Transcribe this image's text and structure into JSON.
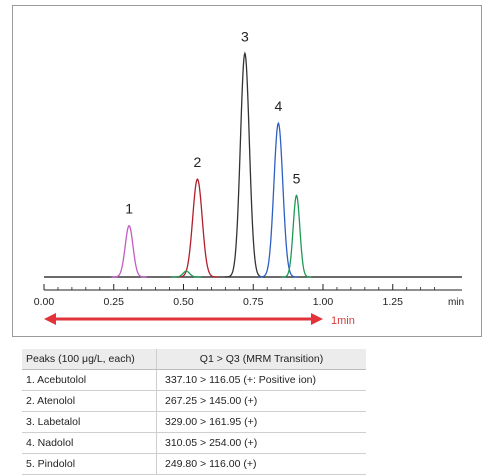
{
  "chart_data": {
    "type": "line",
    "xlabel": "",
    "ylabel": "",
    "x_unit": "min",
    "xlim": [
      0.0,
      1.25
    ],
    "x_ticks": [
      "0.00",
      "0.25",
      "0.50",
      "0.75",
      "1.00",
      "1.25"
    ],
    "grid": false,
    "scale_bar": {
      "from": 0.0,
      "to": 1.0,
      "label": "1min",
      "color": "#e0333a"
    },
    "series": [
      {
        "peak": "1",
        "center": 0.305,
        "height": 0.22,
        "width": 0.014,
        "color": "#c45ac4"
      },
      {
        "peak": "2",
        "center": 0.55,
        "height": 0.42,
        "width": 0.017,
        "color": "#b01f2a"
      },
      {
        "peak": "3",
        "center": 0.72,
        "height": 0.96,
        "width": 0.016,
        "color": "#333333"
      },
      {
        "peak": "4",
        "center": 0.84,
        "height": 0.66,
        "width": 0.016,
        "color": "#2f5fc4"
      },
      {
        "peak": "5",
        "center": 0.905,
        "height": 0.35,
        "width": 0.012,
        "color": "#1e9a55"
      },
      {
        "peak": "",
        "center": 0.51,
        "height": 0.025,
        "width": 0.012,
        "color": "#1e9a55"
      }
    ]
  },
  "table": {
    "header": [
      "Peaks (100 μg/L, each)",
      "Q1 > Q3 (MRM Transition)"
    ],
    "rows": [
      [
        "1. Acebutolol",
        "337.10 > 116.05 (+: Positive ion)"
      ],
      [
        "2. Atenolol",
        "267.25 > 145.00 (+)"
      ],
      [
        "3. Labetalol",
        "329.00 > 161.95 (+)"
      ],
      [
        "4. Nadolol",
        "310.05 > 254.00 (+)"
      ],
      [
        "5. Pindolol",
        "249.80 > 116.00 (+)"
      ]
    ]
  }
}
